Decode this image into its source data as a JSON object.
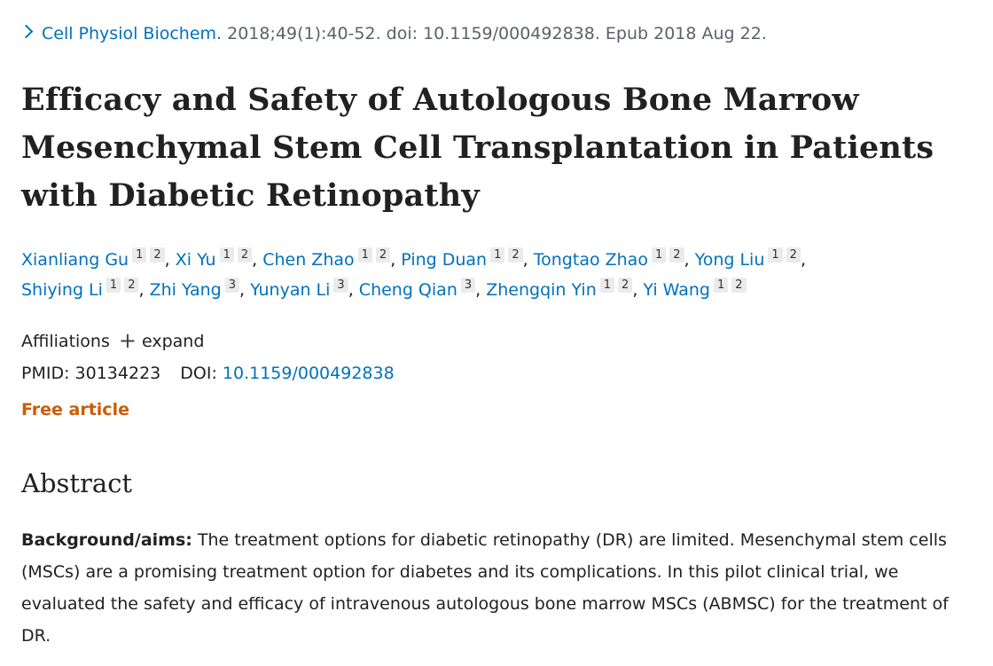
{
  "citation": {
    "journal": "Cell Physiol Biochem.",
    "details": " 2018;49(1):40-52. doi: 10.1159/000492838. Epub 2018 Aug 22."
  },
  "title": "Efficacy and Safety of Autologous Bone Marrow Mesenchymal Stem Cell Transplantation in Patients with Diabetic Retinopathy",
  "authors": [
    {
      "name": "Xianliang Gu",
      "affs": [
        "1",
        "2"
      ]
    },
    {
      "name": "Xi Yu",
      "affs": [
        "1",
        "2"
      ]
    },
    {
      "name": "Chen Zhao",
      "affs": [
        "1",
        "2"
      ]
    },
    {
      "name": "Ping Duan",
      "affs": [
        "1",
        "2"
      ]
    },
    {
      "name": "Tongtao Zhao",
      "affs": [
        "1",
        "2"
      ]
    },
    {
      "name": "Yong Liu",
      "affs": [
        "1",
        "2"
      ]
    },
    {
      "name": "Shiying Li",
      "affs": [
        "1",
        "2"
      ]
    },
    {
      "name": "Zhi Yang",
      "affs": [
        "3"
      ]
    },
    {
      "name": "Yunyan Li",
      "affs": [
        "3"
      ]
    },
    {
      "name": "Cheng Qian",
      "affs": [
        "3"
      ]
    },
    {
      "name": "Zhengqin Yin",
      "affs": [
        "1",
        "2"
      ]
    },
    {
      "name": "Yi Wang",
      "affs": [
        "1",
        "2"
      ]
    }
  ],
  "affiliations": {
    "label": "Affiliations",
    "expand": "expand"
  },
  "ids": {
    "pmid_label": "PMID:",
    "pmid": "30134223",
    "doi_label": "DOI:",
    "doi": "10.1159/000492838"
  },
  "free_article": "Free article",
  "abstract": {
    "heading": "Abstract",
    "bg_label": "Background/aims:",
    "bg_text": " The treatment options for diabetic retinopathy (DR) are limited. Mesenchymal stem cells (MSCs) are a promising treatment option for diabetes and its complications. In this pilot clinical trial, we evaluated the safety and efficacy of intravenous autologous bone marrow MSCs (ABMSC) for the treatment of DR."
  },
  "colors": {
    "link": "#0071bc",
    "free": "#cd5c00"
  }
}
